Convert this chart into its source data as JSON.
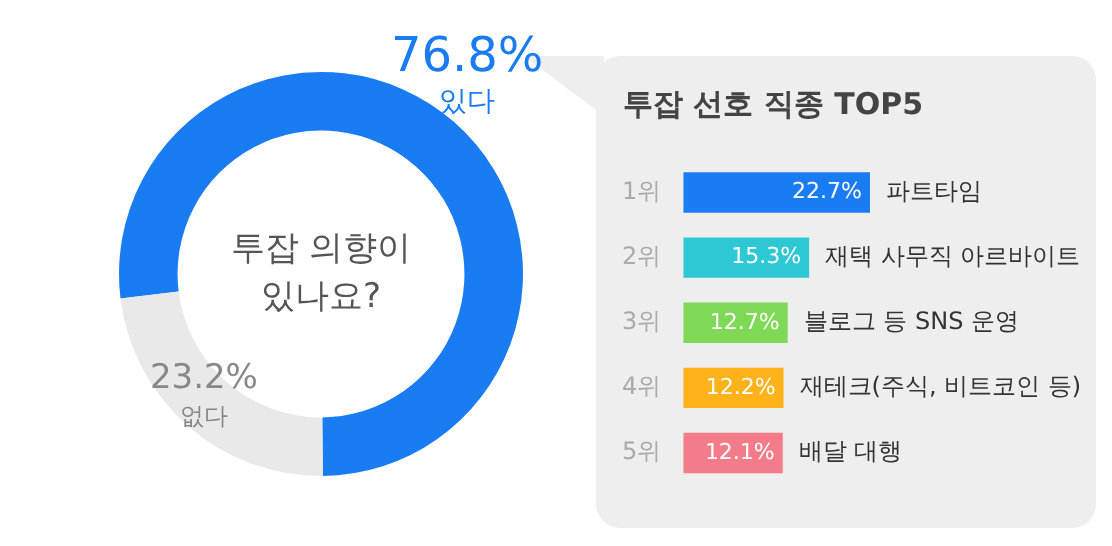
{
  "chart_data": [
    {
      "type": "donut",
      "categories": [
        "있다",
        "없다"
      ],
      "values": [
        76.8,
        23.2
      ],
      "colors": [
        "#1a7cf2",
        "#e9e9e9"
      ],
      "value_labels": [
        "76.8%",
        "23.2%"
      ],
      "annotations": [
        "투잡 의향이 있나요?"
      ],
      "legend": false
    },
    {
      "type": "bar",
      "orientation": "horizontal",
      "title": "투잡 선호 직종 TOP5",
      "categories": [
        "1위",
        "2위",
        "3위",
        "4위",
        "5위"
      ],
      "values": [
        22.7,
        15.3,
        12.7,
        12.2,
        12.1
      ],
      "colors": [
        "#1a7cf2",
        "#2ec8d4",
        "#7ed957",
        "#ffb21a",
        "#f47c8a"
      ],
      "value_labels": [
        "22.7%",
        "15.3%",
        "12.7%",
        "12.2%",
        "12.1%"
      ],
      "annotations": [
        {
          "text": "파트타임",
          "x": 22.7,
          "y": "1위"
        },
        {
          "text": "재택 사무직 아르바이트",
          "x": 15.3,
          "y": "2위"
        },
        {
          "text": "블로그 등 SNS 운영",
          "x": 12.7,
          "y": "3위"
        },
        {
          "text": "재테크(주식, 비트코인 등)",
          "x": 12.2,
          "y": "4위"
        },
        {
          "text": "배달 대행",
          "x": 12.1,
          "y": "5위"
        }
      ],
      "tick_labels": "y",
      "grid": false,
      "legend": false
    }
  ]
}
